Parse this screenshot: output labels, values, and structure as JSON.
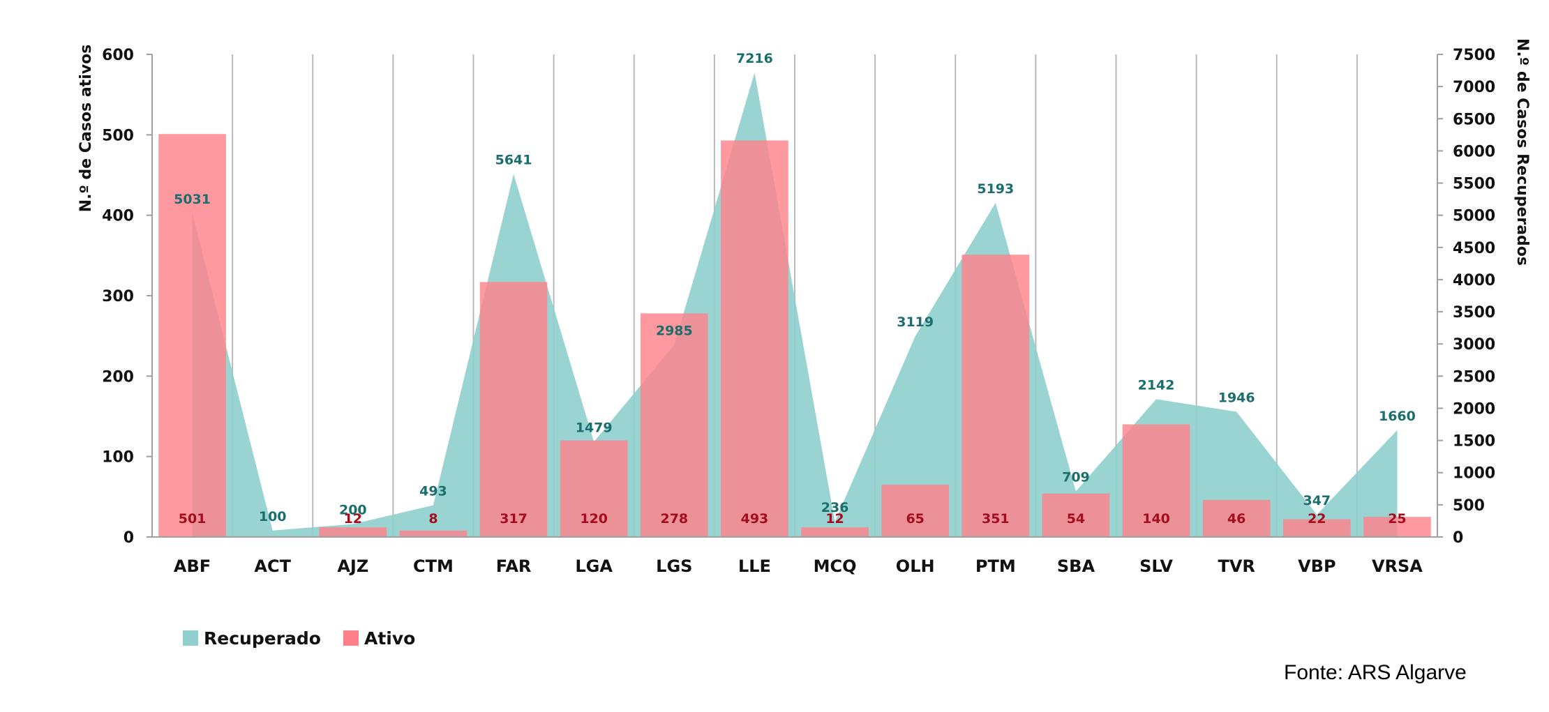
{
  "chart_data": {
    "type": "bar",
    "categories": [
      "ABF",
      "ACT",
      "AJZ",
      "CTM",
      "FAR",
      "LGA",
      "LGS",
      "LLE",
      "MCQ",
      "OLH",
      "PTM",
      "SBA",
      "SLV",
      "TVR",
      "VBP",
      "VRSA"
    ],
    "series": [
      {
        "name": "Recuperado",
        "kind": "area",
        "axis": "right",
        "color": "#8fcfcd",
        "label_color": "#1a6e6e",
        "values": [
          5031,
          100,
          200,
          493,
          5641,
          1479,
          2985,
          7216,
          236,
          3119,
          5193,
          709,
          2142,
          1946,
          347,
          1660
        ]
      },
      {
        "name": "Ativo",
        "kind": "bar",
        "axis": "left",
        "color": "#ff8088",
        "label_color": "#a50d1e",
        "values": [
          501,
          0,
          12,
          8,
          317,
          120,
          278,
          493,
          12,
          65,
          351,
          54,
          140,
          46,
          22,
          25
        ]
      }
    ],
    "ylabel_left": "N.º de Casos ativos",
    "ylabel_right": "N.º de Casos Recuperados",
    "ylim_left": [
      0,
      600
    ],
    "yticks_left": [
      0,
      100,
      200,
      300,
      400,
      500,
      600
    ],
    "ylim_right": [
      0,
      7500
    ],
    "yticks_right": [
      0,
      500,
      1000,
      1500,
      2000,
      2500,
      3000,
      3500,
      4000,
      4500,
      5000,
      5500,
      6000,
      6500,
      7000,
      7500
    ],
    "grid": "vertical",
    "legend_position": "bottom-left"
  },
  "source": "Fonte: ARS Algarve"
}
